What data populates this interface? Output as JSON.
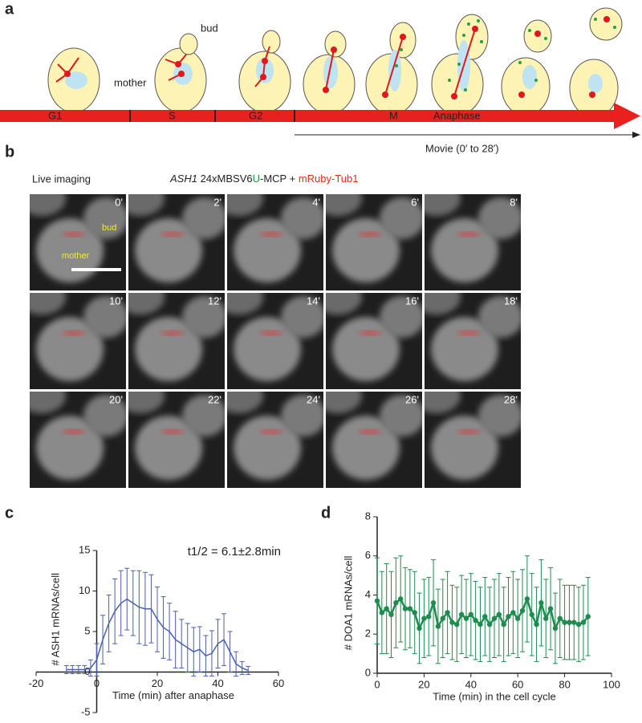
{
  "panels": [
    "a",
    "b",
    "c",
    "d"
  ],
  "diagram": {
    "labels": {
      "bud": "bud",
      "mother": "mother"
    },
    "phases": [
      "G1",
      "S",
      "G2",
      "M",
      "Anaphase"
    ],
    "movie": "Movie (0′ to 28′)"
  },
  "imaging": {
    "heading": "Live imaging",
    "construct": [
      {
        "text": "ASH1",
        "style": "italic",
        "color": "#222"
      },
      {
        "text": " 24xMBSV6",
        "style": "normal",
        "color": "#222"
      },
      {
        "text": "U",
        "style": "normal",
        "color": "#1a9a3a"
      },
      {
        "text": "-MCP + ",
        "style": "normal",
        "color": "#222"
      },
      {
        "text": "mRuby-Tub1",
        "style": "normal",
        "color": "#e0301e"
      }
    ],
    "times": [
      "0'",
      "2'",
      "4'",
      "6'",
      "8'",
      "10'",
      "12'",
      "14'",
      "16'",
      "18'",
      "20'",
      "22'",
      "24'",
      "26'",
      "28'"
    ],
    "bud": "bud",
    "mother": "mother"
  },
  "chart_data": [
    {
      "type": "line",
      "annotation": "t1/2 = 6.1±2.8min",
      "x_label": "Time (min) after anaphase",
      "y_label": "# ASH1 mRNAs/cell",
      "color": "#4a5fae",
      "markers": false,
      "x": [
        -10,
        -8,
        -6,
        -4,
        -2,
        0,
        2,
        4,
        6,
        8,
        10,
        12,
        14,
        16,
        18,
        20,
        22,
        24,
        26,
        28,
        30,
        32,
        34,
        36,
        38,
        40,
        42,
        44,
        46,
        48,
        50
      ],
      "values": [
        0.3,
        0.3,
        0.3,
        0.3,
        0.5,
        1.5,
        4,
        6,
        7.5,
        8.5,
        9,
        8.5,
        8,
        7.8,
        7.8,
        6.5,
        5.5,
        5,
        4,
        3.5,
        3,
        2.5,
        2.8,
        2,
        2.3,
        3.5,
        4,
        2.5,
        1,
        0.5,
        0.2
      ],
      "errors": [
        0.5,
        0.5,
        0.5,
        0.5,
        1,
        2,
        3,
        3.5,
        4,
        4,
        3.8,
        4,
        4.5,
        4.5,
        4.2,
        4,
        3.8,
        3.5,
        3.5,
        3,
        3,
        3,
        2.8,
        2.5,
        2.8,
        3,
        3.2,
        2.5,
        1.5,
        0.8,
        0.5
      ],
      "xlim": [
        -20,
        60
      ],
      "xticks": [
        -20,
        0,
        20,
        40,
        60
      ],
      "ylim": [
        -5,
        15
      ],
      "yticks": [
        -5,
        0,
        5,
        10,
        15
      ]
    },
    {
      "type": "line",
      "x_label": "Time (min) in the cell cycle",
      "y_label": "# DOA1 mRNAs/cell",
      "color": "#1e8c4e",
      "markers": true,
      "x": [
        0,
        2,
        4,
        6,
        8,
        10,
        12,
        14,
        16,
        18,
        20,
        22,
        24,
        26,
        28,
        30,
        32,
        34,
        36,
        38,
        40,
        42,
        44,
        46,
        48,
        50,
        52,
        54,
        56,
        58,
        60,
        62,
        64,
        66,
        68,
        70,
        72,
        74,
        76,
        78,
        80,
        82,
        84,
        86,
        88,
        90
      ],
      "values": [
        3.7,
        3.1,
        3.3,
        3.0,
        3.6,
        3.8,
        3.3,
        3.3,
        3.1,
        2.3,
        2.8,
        2.9,
        3.6,
        2.4,
        2.8,
        3.1,
        2.6,
        2.5,
        3.0,
        2.8,
        3.0,
        2.7,
        2.5,
        2.9,
        2.5,
        2.8,
        3.0,
        2.5,
        2.9,
        3.1,
        2.8,
        3.2,
        3.8,
        3.0,
        2.5,
        3.6,
        2.8,
        3.3,
        2.3,
        2.8,
        2.6,
        2.6,
        2.6,
        2.5,
        2.6,
        2.9
      ],
      "errors": [
        2.2,
        2.1,
        2.3,
        2.2,
        2.3,
        2.2,
        2.1,
        2.0,
        2.1,
        1.8,
        2.0,
        2.0,
        2.2,
        1.9,
        2.0,
        2.1,
        1.9,
        1.9,
        2.0,
        2.0,
        2.1,
        2.0,
        1.9,
        2.0,
        1.9,
        2.0,
        2.1,
        1.9,
        2.0,
        2.1,
        2.0,
        2.1,
        2.2,
        2.1,
        1.9,
        2.2,
        2.0,
        2.1,
        1.8,
        2.0,
        1.9,
        1.9,
        1.9,
        1.9,
        1.9,
        2.0
      ],
      "xlim": [
        0,
        100
      ],
      "xticks": [
        0,
        20,
        40,
        60,
        80,
        100
      ],
      "ylim": [
        0,
        8
      ],
      "yticks": [
        0,
        2,
        4,
        6,
        8
      ]
    }
  ]
}
